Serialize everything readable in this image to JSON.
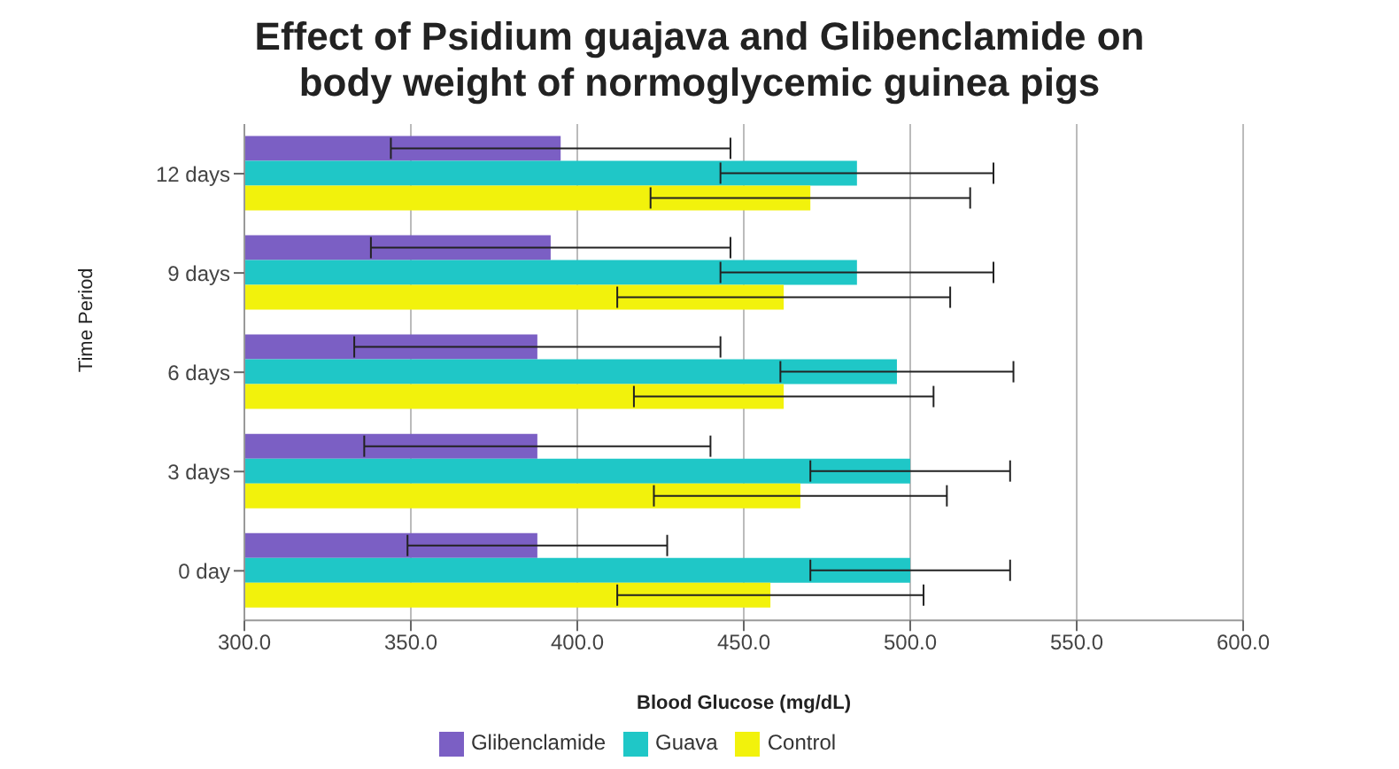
{
  "chart_data": {
    "type": "bar",
    "orientation": "horizontal",
    "title": "Effect of Psidium guajava and Glibenclamide on body weight of normoglycemic guinea pigs",
    "xlabel": "Blood Glucose (mg/dL)",
    "ylabel": "Time Period",
    "categories": [
      "12 days",
      "9 days",
      "6 days",
      "3 days",
      "0 day"
    ],
    "series": [
      {
        "name": "Glibenclamide",
        "color": "#7b5fc4",
        "values": [
          395,
          392,
          388,
          388,
          388
        ],
        "errors": [
          51,
          54,
          55,
          52,
          39
        ]
      },
      {
        "name": "Guava",
        "color": "#1fc7c7",
        "values": [
          484,
          484,
          496,
          500,
          500
        ],
        "errors": [
          41,
          41,
          35,
          30,
          30
        ]
      },
      {
        "name": "Control",
        "color": "#f2f20c",
        "values": [
          470,
          462,
          462,
          467,
          458
        ],
        "errors": [
          48,
          50,
          45,
          44,
          46
        ]
      }
    ],
    "xlim": [
      300,
      600
    ],
    "xticks": [
      {
        "value": 300,
        "label": "300.0"
      },
      {
        "value": 350,
        "label": "350.0"
      },
      {
        "value": 400,
        "label": "400.0"
      },
      {
        "value": 450,
        "label": "450.0"
      },
      {
        "value": 500,
        "label": "500.0"
      },
      {
        "value": 550,
        "label": "550.0"
      },
      {
        "value": 600,
        "label": "600.0"
      }
    ],
    "grid": "x",
    "legend": "bottom"
  }
}
